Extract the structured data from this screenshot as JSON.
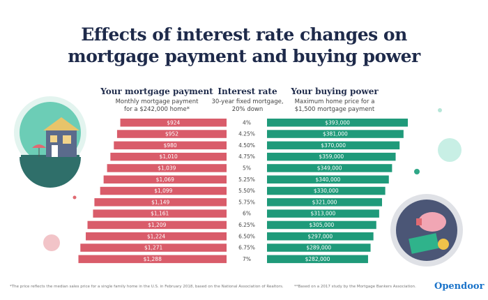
{
  "title_line1": "Effects of interest rate changes on",
  "title_line2": "mortgage payment and buying power",
  "columns": {
    "left": {
      "heading": "Your mortgage payment",
      "sub1": "Monthly mortgage payment",
      "sub2": "for a $242,000 home*"
    },
    "middle": {
      "heading": "Interest rate",
      "sub1": "30-year fixed mortgage,",
      "sub2": "20% down"
    },
    "right": {
      "heading": "Your buying power",
      "sub1": "Maximum home price for a",
      "sub2": "$1,500 mortgage payment"
    }
  },
  "chart_data": {
    "type": "bar",
    "categories": [
      "4%",
      "4.25%",
      "4.50%",
      "4.75%",
      "5%",
      "5.25%",
      "5.50%",
      "5.75%",
      "6%",
      "6.25%",
      "6.50%",
      "6.75%",
      "7%"
    ],
    "series": [
      {
        "name": "Your mortgage payment",
        "values": [
          924,
          952,
          980,
          1010,
          1039,
          1069,
          1099,
          1149,
          1161,
          1209,
          1224,
          1271,
          1288
        ],
        "labels": [
          "$924",
          "$952",
          "$980",
          "$1,010",
          "$1,039",
          "$1,069",
          "$1,099",
          "$1,149",
          "$1,161",
          "$1,209",
          "$1,224",
          "$1,271",
          "$1,288"
        ],
        "color": "#d95c6a"
      },
      {
        "name": "Your buying power",
        "values": [
          393000,
          381000,
          370000,
          359000,
          349000,
          340000,
          330000,
          321000,
          313000,
          305000,
          297000,
          289000,
          282000
        ],
        "labels": [
          "$393,000",
          "$381,000",
          "$370,000",
          "$359,000",
          "$349,000",
          "$340,000",
          "$330,000",
          "$321,000",
          "$313,000",
          "$305,000",
          "$297,000",
          "$289,000",
          "$282,000"
        ],
        "color": "#1f9a7a"
      }
    ]
  },
  "footnote_left": "*The price reflects the median sales price for a single family home in the U.S. in February 2018, based on the National Association of Realtors.",
  "footnote_right": "**Based on a 2017 study by the Mortgage Bankers Association.",
  "logo": "Opendoor"
}
